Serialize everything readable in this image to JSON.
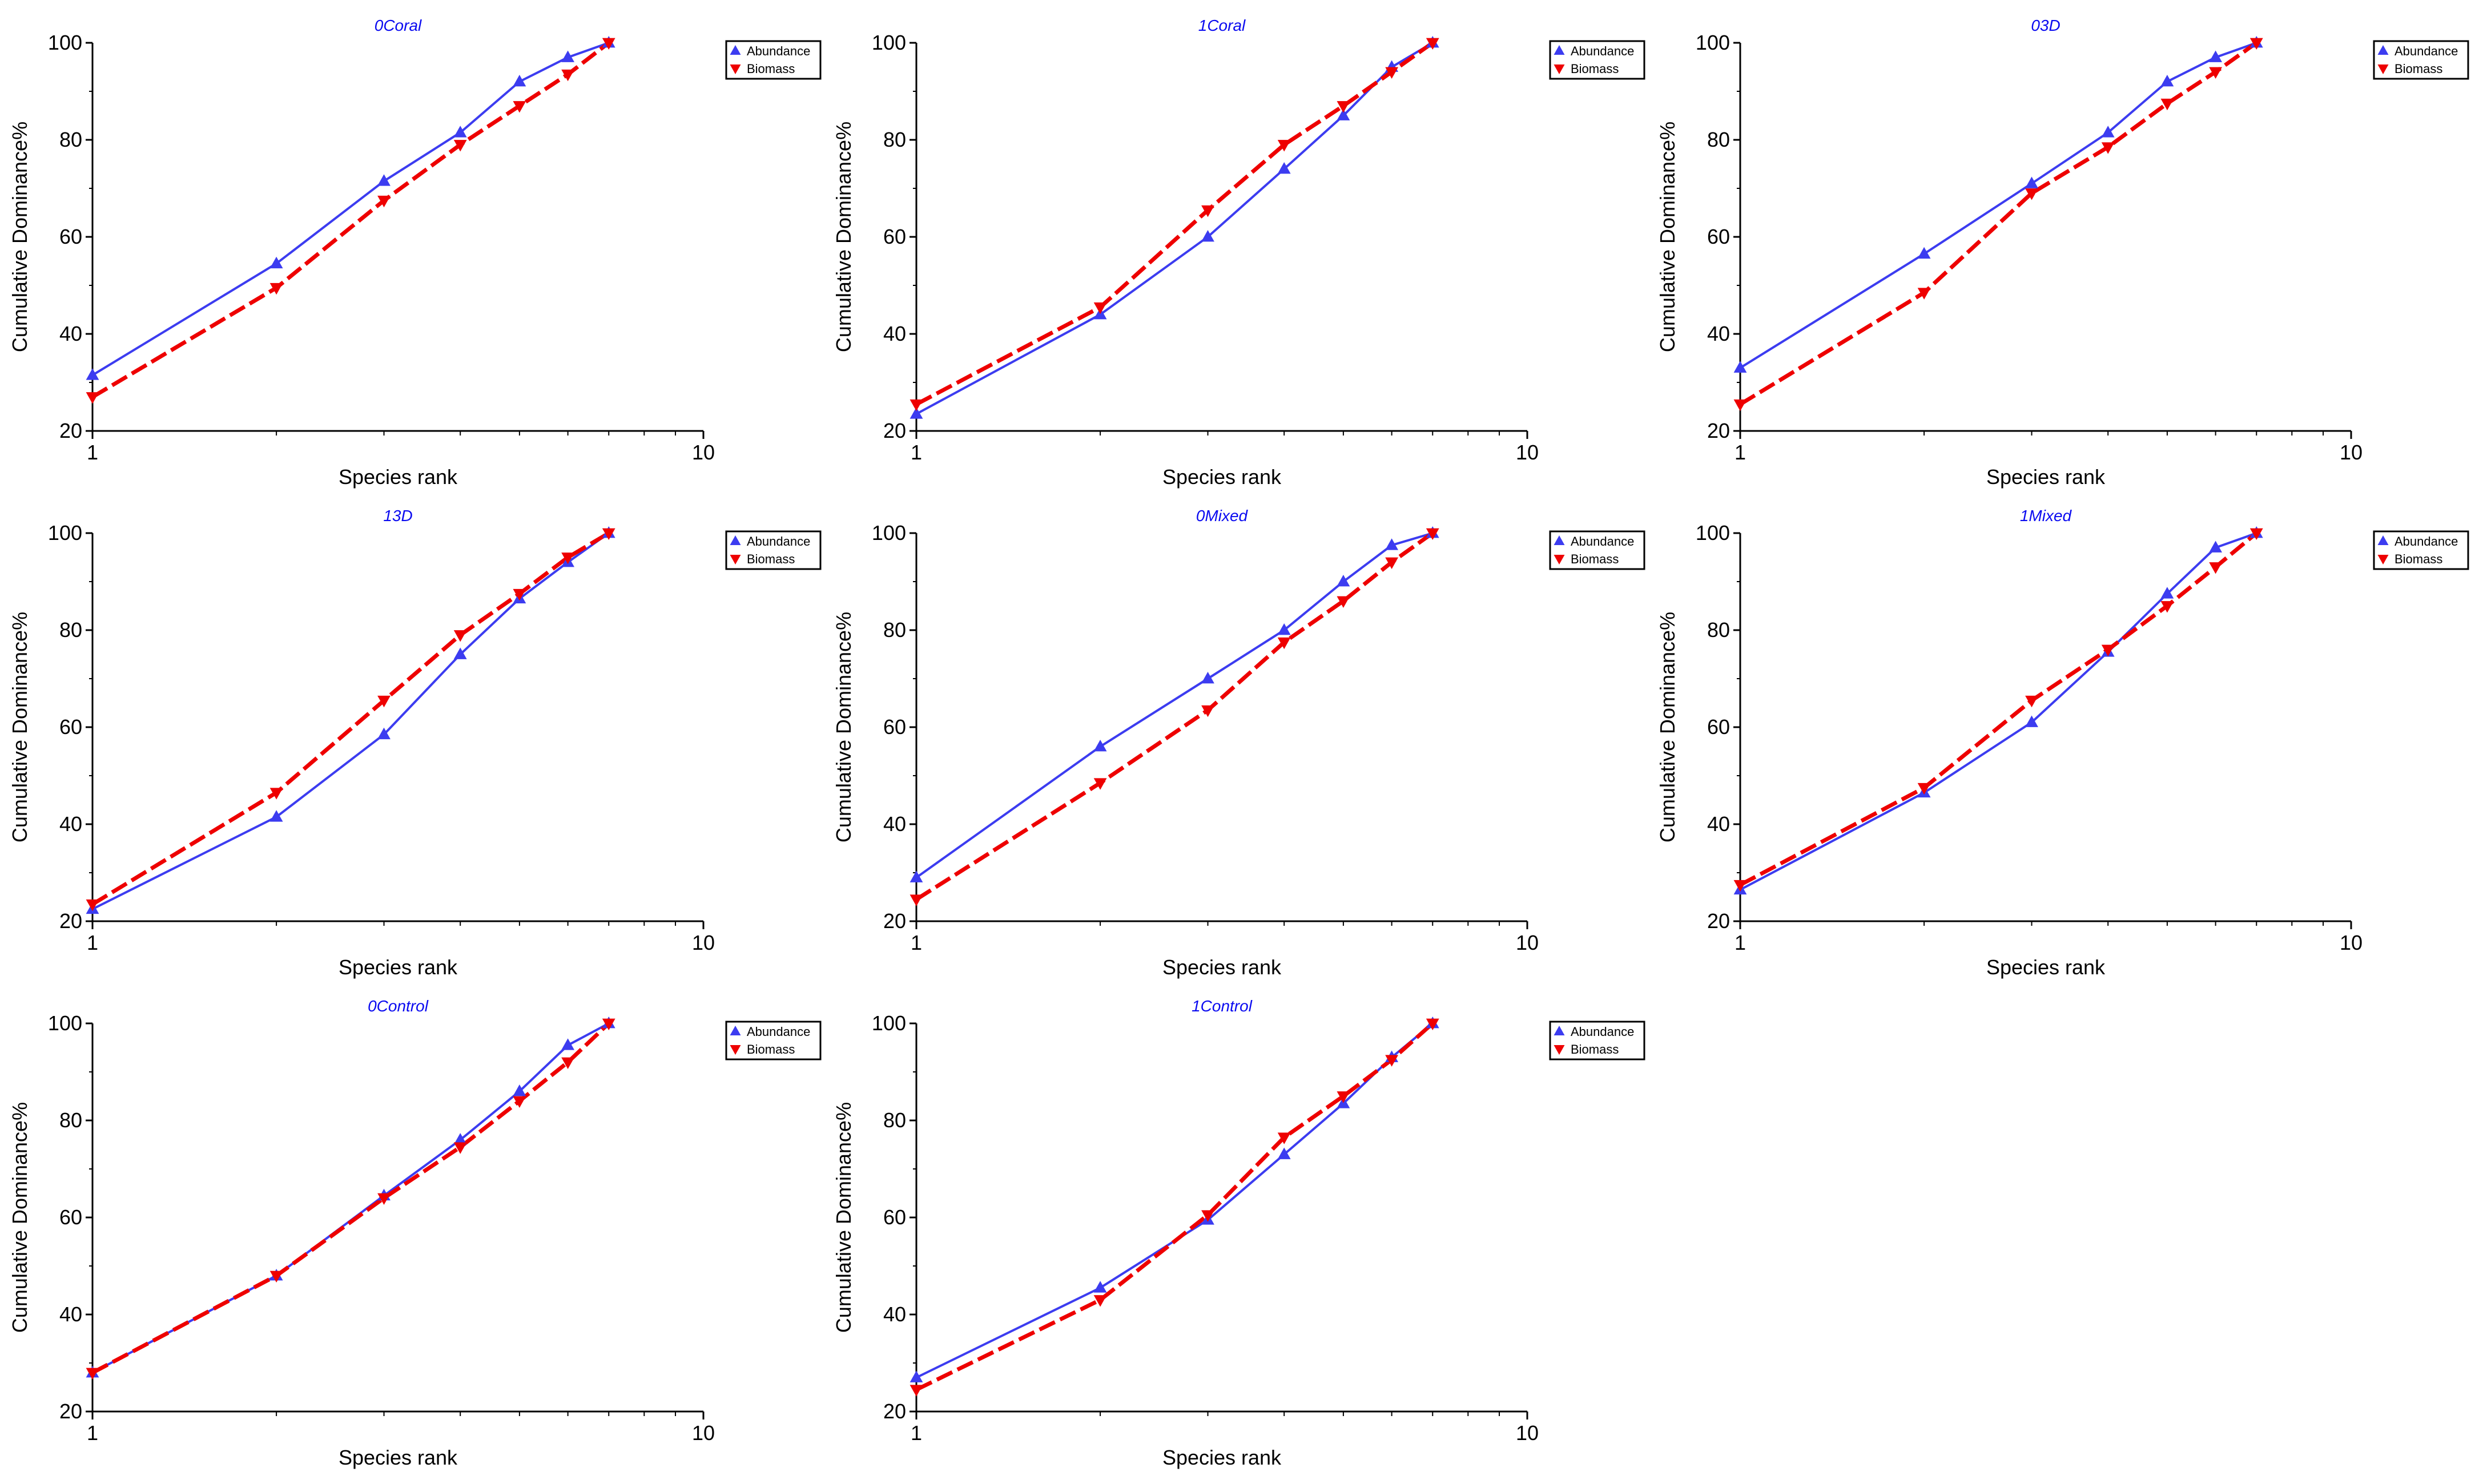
{
  "figure": {
    "colors": {
      "abundance": "#3c3cf0",
      "biomass": "#ee0000",
      "title": "#0a0af0",
      "axis": "#000000"
    }
  },
  "chart_data": [
    {
      "type": "line",
      "title": "0Coral",
      "xlabel": "Species rank",
      "ylabel": "Cumulative Dominance%",
      "xscale": "log",
      "xlim": [
        1,
        10
      ],
      "ylim": [
        20,
        100
      ],
      "xticks": [
        1,
        10
      ],
      "yticks": [
        20,
        40,
        60,
        80,
        100
      ],
      "grid": false,
      "legend": "top-right",
      "x": [
        1,
        2,
        3,
        4,
        5,
        6,
        7
      ],
      "series": [
        {
          "name": "Abundance",
          "marker": "triangle-up",
          "values": [
            31.5,
            54.5,
            71.5,
            81.5,
            92.0,
            97.0,
            100.0
          ]
        },
        {
          "name": "Biomass",
          "marker": "triangle-down",
          "values": [
            27.0,
            49.5,
            67.5,
            79.0,
            87.0,
            93.5,
            100.0
          ]
        }
      ]
    },
    {
      "type": "line",
      "title": "1Coral",
      "xlabel": "Species rank",
      "ylabel": "Cumulative Dominance%",
      "xscale": "log",
      "xlim": [
        1,
        10
      ],
      "ylim": [
        20,
        100
      ],
      "xticks": [
        1,
        10
      ],
      "yticks": [
        20,
        40,
        60,
        80,
        100
      ],
      "grid": false,
      "legend": "top-right",
      "x": [
        1,
        2,
        3,
        4,
        5,
        6,
        7
      ],
      "series": [
        {
          "name": "Abundance",
          "marker": "triangle-up",
          "values": [
            23.5,
            44.0,
            60.0,
            74.0,
            85.0,
            95.0,
            100.0
          ]
        },
        {
          "name": "Biomass",
          "marker": "triangle-down",
          "values": [
            25.5,
            45.5,
            65.5,
            79.0,
            87.0,
            94.0,
            100.0
          ]
        }
      ]
    },
    {
      "type": "line",
      "title": "03D",
      "xlabel": "Species rank",
      "ylabel": "Cumulative Dominance%",
      "xscale": "log",
      "xlim": [
        1,
        10
      ],
      "ylim": [
        20,
        100
      ],
      "xticks": [
        1,
        10
      ],
      "yticks": [
        20,
        40,
        60,
        80,
        100
      ],
      "grid": false,
      "legend": "top-right",
      "x": [
        1,
        2,
        3,
        4,
        5,
        6,
        7
      ],
      "series": [
        {
          "name": "Abundance",
          "marker": "triangle-up",
          "values": [
            33.0,
            56.5,
            71.0,
            81.5,
            92.0,
            97.0,
            100.0
          ]
        },
        {
          "name": "Biomass",
          "marker": "triangle-down",
          "values": [
            25.5,
            48.5,
            69.0,
            78.5,
            87.5,
            94.0,
            100.0
          ]
        }
      ]
    },
    {
      "type": "line",
      "title": "13D",
      "xlabel": "Species rank",
      "ylabel": "Cumulative Dominance%",
      "xscale": "log",
      "xlim": [
        1,
        10
      ],
      "ylim": [
        20,
        100
      ],
      "xticks": [
        1,
        10
      ],
      "yticks": [
        20,
        40,
        60,
        80,
        100
      ],
      "grid": false,
      "legend": "top-right",
      "x": [
        1,
        2,
        3,
        4,
        5,
        6,
        7
      ],
      "series": [
        {
          "name": "Abundance",
          "marker": "triangle-up",
          "values": [
            22.5,
            41.5,
            58.5,
            75.0,
            86.5,
            94.0,
            100.0
          ]
        },
        {
          "name": "Biomass",
          "marker": "triangle-down",
          "values": [
            23.5,
            46.5,
            65.5,
            79.0,
            87.5,
            95.0,
            100.0
          ]
        }
      ]
    },
    {
      "type": "line",
      "title": "0Mixed",
      "xlabel": "Species rank",
      "ylabel": "Cumulative Dominance%",
      "xscale": "log",
      "xlim": [
        1,
        10
      ],
      "ylim": [
        20,
        100
      ],
      "xticks": [
        1,
        10
      ],
      "yticks": [
        20,
        40,
        60,
        80,
        100
      ],
      "grid": false,
      "legend": "top-right",
      "x": [
        1,
        2,
        3,
        4,
        5,
        6,
        7
      ],
      "series": [
        {
          "name": "Abundance",
          "marker": "triangle-up",
          "values": [
            29.0,
            56.0,
            70.0,
            80.0,
            90.0,
            97.5,
            100.0
          ]
        },
        {
          "name": "Biomass",
          "marker": "triangle-down",
          "values": [
            24.5,
            48.5,
            63.5,
            77.5,
            86.0,
            94.0,
            100.0
          ]
        }
      ]
    },
    {
      "type": "line",
      "title": "1Mixed",
      "xlabel": "Species rank",
      "ylabel": "Cumulative Dominance%",
      "xscale": "log",
      "xlim": [
        1,
        10
      ],
      "ylim": [
        20,
        100
      ],
      "xticks": [
        1,
        10
      ],
      "yticks": [
        20,
        40,
        60,
        80,
        100
      ],
      "grid": false,
      "legend": "top-right",
      "x": [
        1,
        2,
        3,
        4,
        5,
        6,
        7
      ],
      "series": [
        {
          "name": "Abundance",
          "marker": "triangle-up",
          "values": [
            26.5,
            46.5,
            61.0,
            75.5,
            87.5,
            97.0,
            100.0
          ]
        },
        {
          "name": "Biomass",
          "marker": "triangle-down",
          "values": [
            27.5,
            47.5,
            65.5,
            76.0,
            85.0,
            93.0,
            100.0
          ]
        }
      ]
    },
    {
      "type": "line",
      "title": "0Control",
      "xlabel": "Species rank",
      "ylabel": "Cumulative Dominance%",
      "xscale": "log",
      "xlim": [
        1,
        10
      ],
      "ylim": [
        20,
        100
      ],
      "xticks": [
        1,
        10
      ],
      "yticks": [
        20,
        40,
        60,
        80,
        100
      ],
      "grid": false,
      "legend": "top-right",
      "x": [
        1,
        2,
        3,
        4,
        5,
        6,
        7
      ],
      "series": [
        {
          "name": "Abundance",
          "marker": "triangle-up",
          "values": [
            28.0,
            48.0,
            64.5,
            76.0,
            86.0,
            95.5,
            100.0
          ]
        },
        {
          "name": "Biomass",
          "marker": "triangle-down",
          "values": [
            28.0,
            48.0,
            64.0,
            74.5,
            84.0,
            92.0,
            100.0
          ]
        }
      ]
    },
    {
      "type": "line",
      "title": "1Control",
      "xlabel": "Species rank",
      "ylabel": "Cumulative Dominance%",
      "xscale": "log",
      "xlim": [
        1,
        10
      ],
      "ylim": [
        20,
        100
      ],
      "xticks": [
        1,
        10
      ],
      "yticks": [
        20,
        40,
        60,
        80,
        100
      ],
      "grid": false,
      "legend": "top-right",
      "x": [
        1,
        2,
        3,
        4,
        5,
        6,
        7
      ],
      "series": [
        {
          "name": "Abundance",
          "marker": "triangle-up",
          "values": [
            27.0,
            45.5,
            59.5,
            73.0,
            83.5,
            93.0,
            100.0
          ]
        },
        {
          "name": "Biomass",
          "marker": "triangle-down",
          "values": [
            24.5,
            43.0,
            60.5,
            76.5,
            85.0,
            92.5,
            100.0
          ]
        }
      ]
    }
  ]
}
